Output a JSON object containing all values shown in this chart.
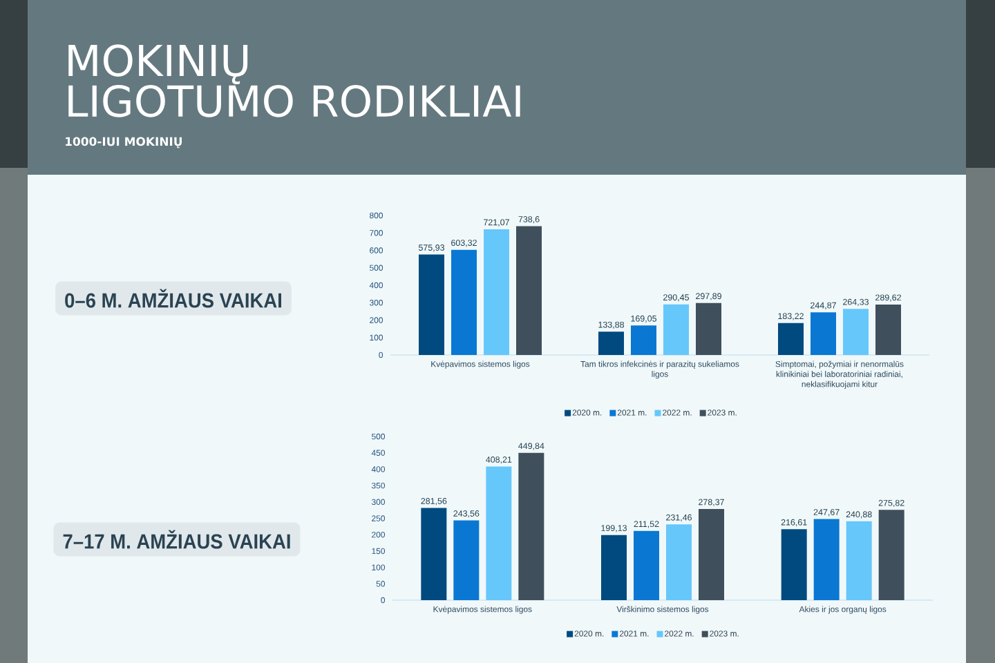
{
  "chart_data": [
    {
      "type": "other",
      "title": "MOKINIŲ LIGOTUMO RODIKLIAI",
      "subtitle": "1000-IUI MOKINIŲ"
    },
    {
      "type": "bar",
      "title": "0–6 M. AMŽIAUS VAIKAI",
      "categories": [
        "Kvėpavimos sistemos ligos",
        "Tam tikros infekcinės ir parazitų sukeliamos ligos",
        "Simptomai, požymiai ir nenormalūs klinikiniai bei laboratoriniai radiniai, neklasifikuojami kitur"
      ],
      "series": [
        {
          "name": "2020 m.",
          "color": "#004a7f",
          "values": [
            575.93,
            133.88,
            183.22
          ],
          "value_labels": [
            "575,93",
            "133,88",
            "183,22"
          ]
        },
        {
          "name": "2021 m.",
          "color": "#0a78d2",
          "values": [
            603.32,
            169.05,
            244.87
          ],
          "value_labels": [
            "603,32",
            "169,05",
            "244,87"
          ]
        },
        {
          "name": "2022 m.",
          "color": "#66c7fb",
          "values": [
            721.07,
            290.45,
            264.33
          ],
          "value_labels": [
            "721,07",
            "290,45",
            "264,33"
          ]
        },
        {
          "name": "2023 m.",
          "color": "#3f4f5b",
          "values": [
            738.6,
            297.89,
            289.62
          ],
          "value_labels": [
            "738,6",
            "297,89",
            "289,62"
          ]
        }
      ],
      "ylim": [
        0,
        800
      ],
      "yticks": [
        0,
        100,
        200,
        300,
        400,
        500,
        600,
        700,
        800
      ],
      "legend": "bottom"
    },
    {
      "type": "bar",
      "title": "7–17 M. AMŽIAUS VAIKAI",
      "categories": [
        "Kvėpavimos sistemos ligos",
        "Virškinimo sistemos ligos",
        "Akies ir jos organų ligos"
      ],
      "series": [
        {
          "name": "2020 m.",
          "color": "#004a7f",
          "values": [
            281.56,
            199.13,
            216.61
          ],
          "value_labels": [
            "281,56",
            "199,13",
            "216,61"
          ]
        },
        {
          "name": "2021 m.",
          "color": "#0a78d2",
          "values": [
            243.56,
            211.52,
            247.67
          ],
          "value_labels": [
            "243,56",
            "211,52",
            "247,67"
          ]
        },
        {
          "name": "2022 m.",
          "color": "#66c7fb",
          "values": [
            408.21,
            231.46,
            240.88
          ],
          "value_labels": [
            "408,21",
            "231,46",
            "240,88"
          ]
        },
        {
          "name": "2023 m.",
          "color": "#3f4f5b",
          "values": [
            449.84,
            278.37,
            275.82
          ],
          "value_labels": [
            "449,84",
            "278,37",
            "275,82"
          ]
        }
      ],
      "ylim": [
        0,
        500
      ],
      "yticks": [
        0,
        50,
        100,
        150,
        200,
        250,
        300,
        350,
        400,
        450,
        500
      ],
      "legend": "bottom"
    }
  ]
}
